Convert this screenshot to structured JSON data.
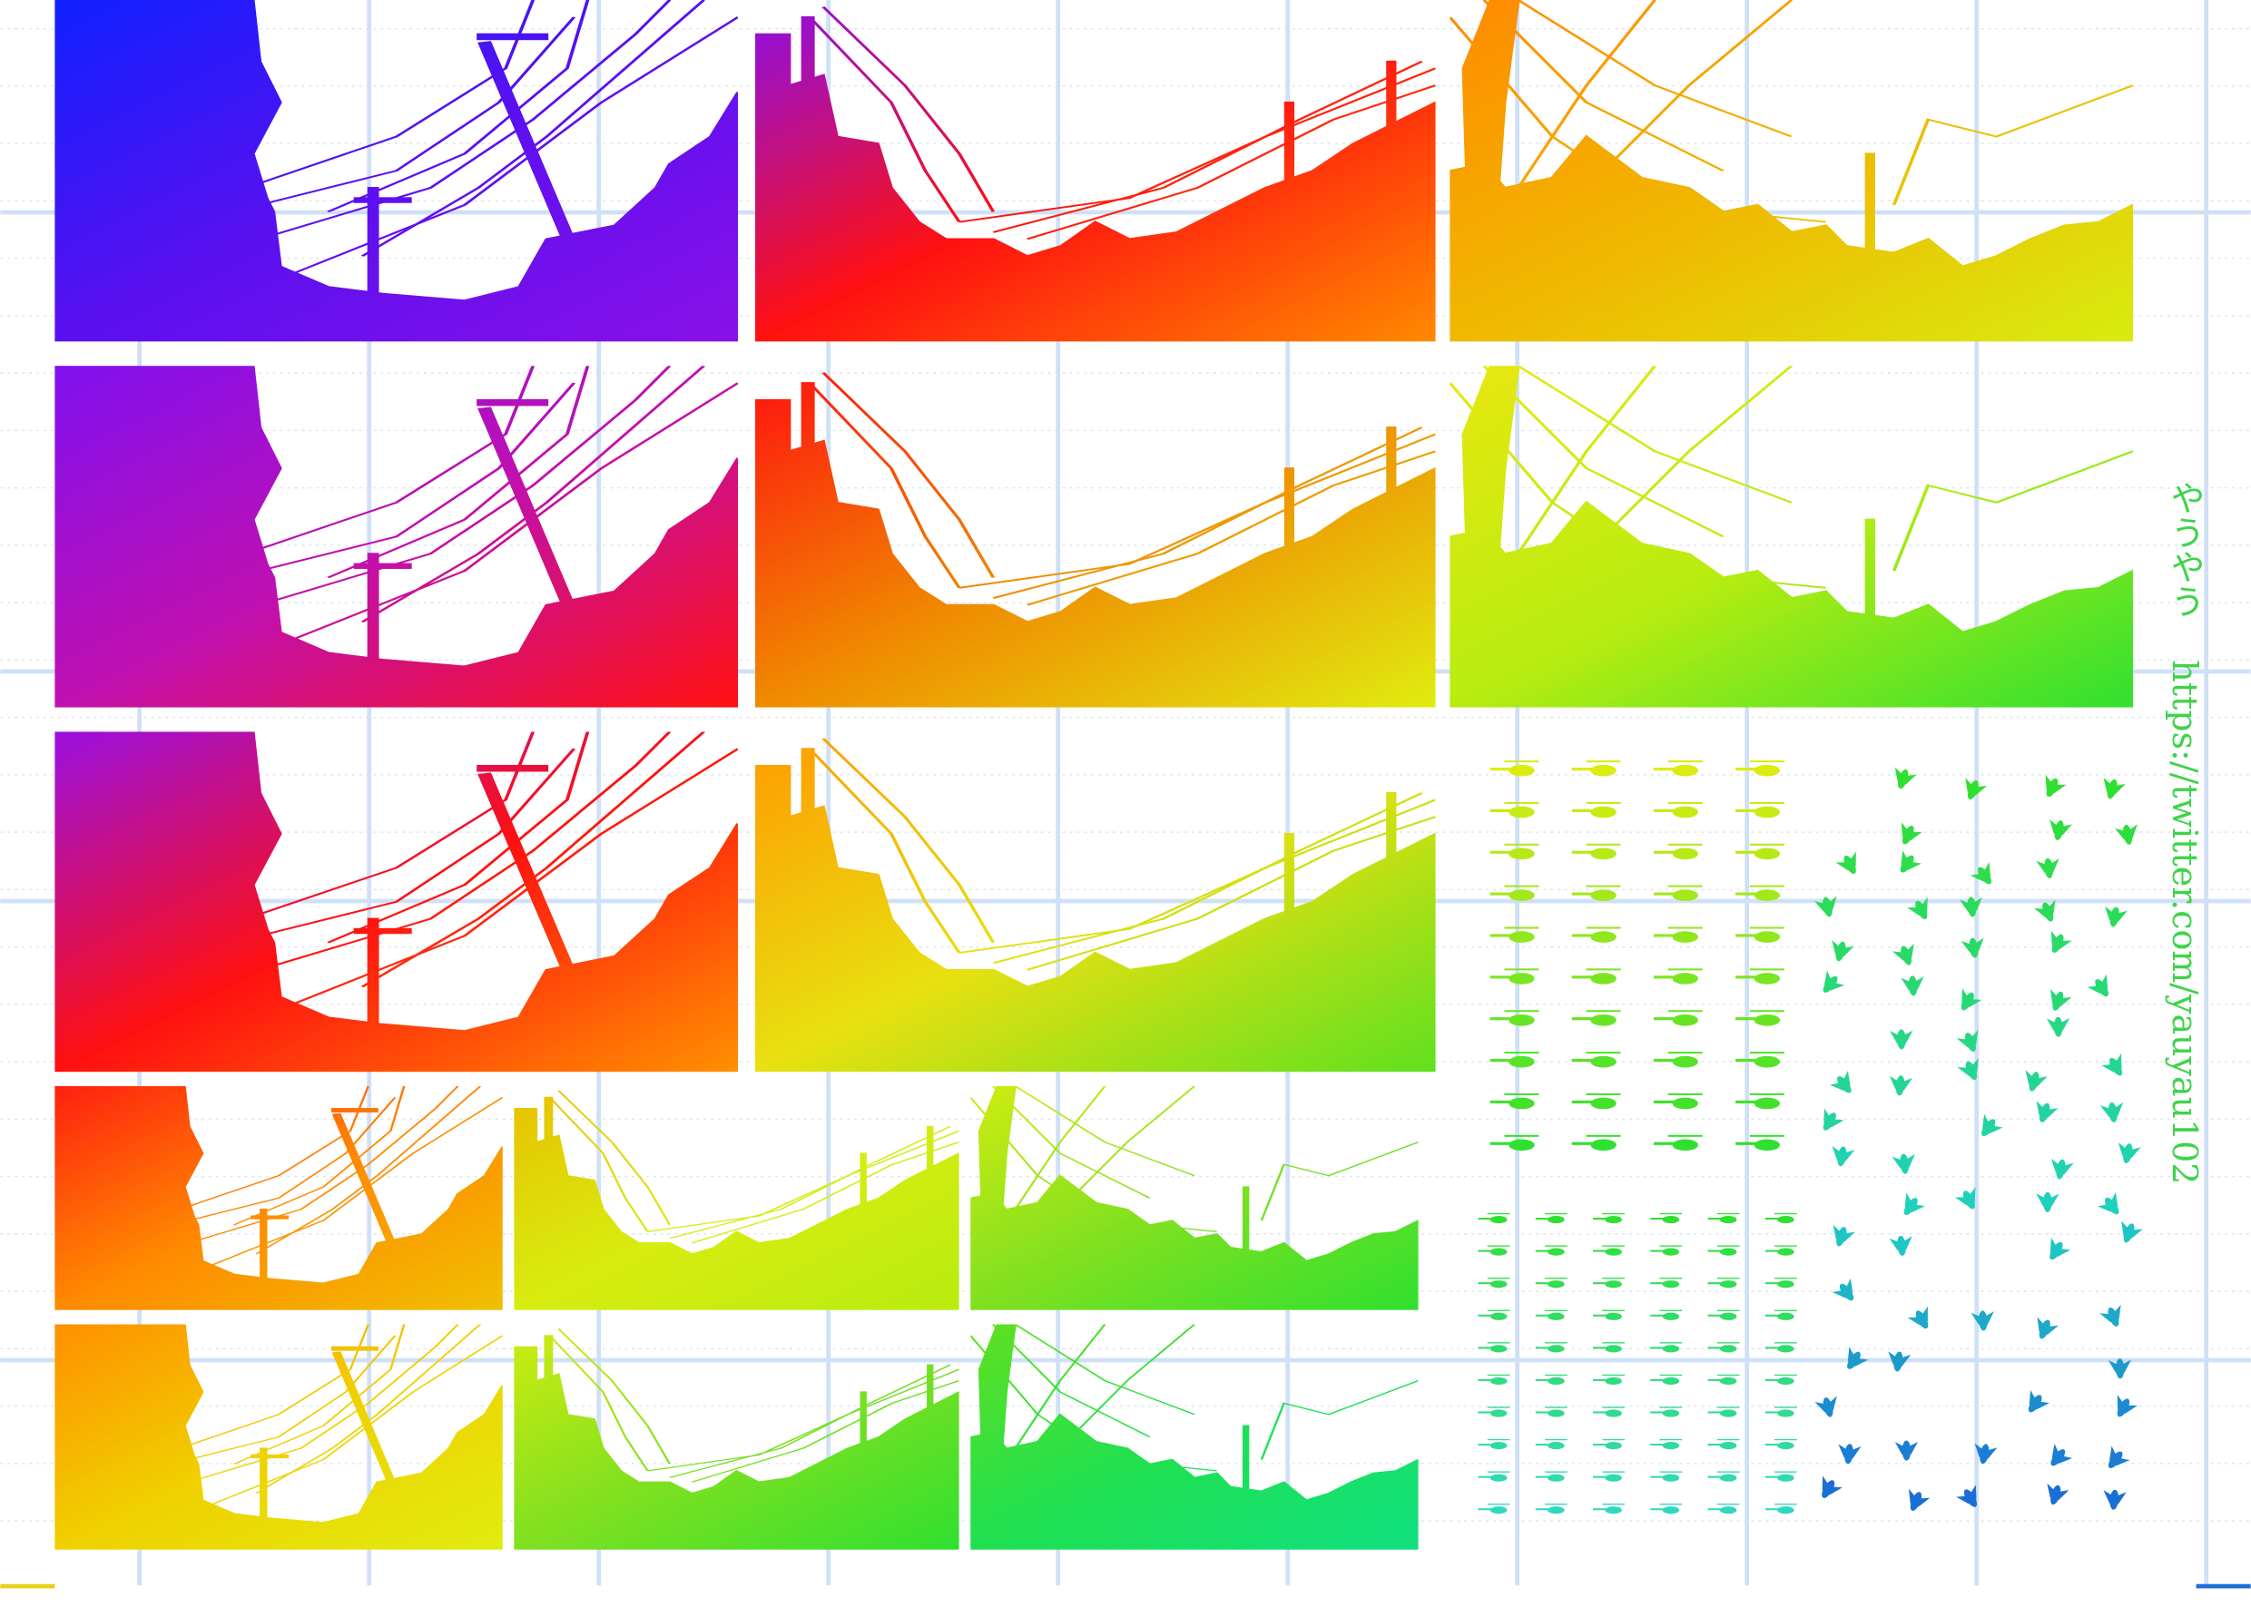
{
  "watermark": {
    "name": "やうやう",
    "url": "https://twitter.com/yauyau102"
  }
}
